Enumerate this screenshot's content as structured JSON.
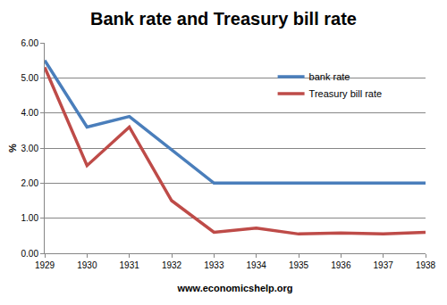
{
  "chart_data": {
    "type": "line",
    "title": "Bank rate and Treasury bill rate",
    "x_label": "www.economicshelp.org",
    "y_label": "%",
    "categories": [
      "1929",
      "1930",
      "1931",
      "1932",
      "1933",
      "1934",
      "1935",
      "1936",
      "1937",
      "1938"
    ],
    "series": [
      {
        "name": "bank rate",
        "color": "#4a7ebb",
        "values": [
          5.5,
          3.6,
          3.9,
          2.95,
          2.0,
          2.0,
          2.0,
          2.0,
          2.0,
          2.0
        ]
      },
      {
        "name": "Treasury bill rate",
        "color": "#be4b48",
        "values": [
          5.3,
          2.5,
          3.6,
          1.5,
          0.6,
          0.72,
          0.55,
          0.58,
          0.55,
          0.6
        ]
      }
    ],
    "ylim": [
      0,
      6
    ],
    "yticks": [
      {
        "value": 0,
        "label": "0.00"
      },
      {
        "value": 1,
        "label": "1.00"
      },
      {
        "value": 2,
        "label": "2.00"
      },
      {
        "value": 3,
        "label": "3.00"
      },
      {
        "value": 4,
        "label": "4.00"
      },
      {
        "value": 5,
        "label": "5.00"
      },
      {
        "value": 6,
        "label": "6.00"
      }
    ],
    "grid": true,
    "legend": "upper right"
  }
}
